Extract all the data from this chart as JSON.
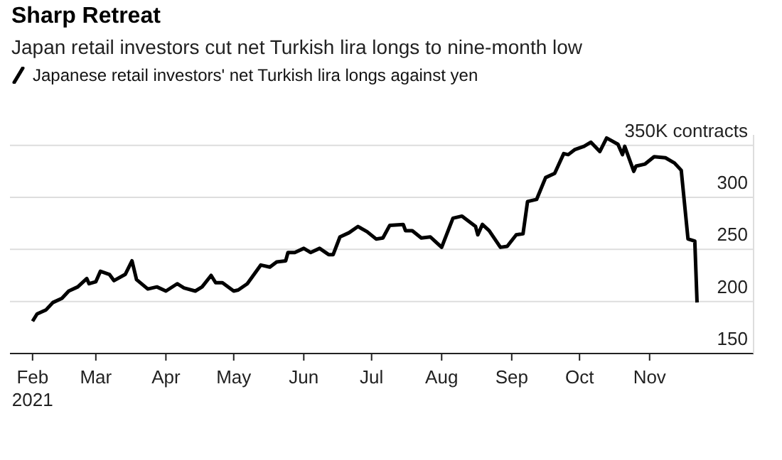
{
  "chart_data": {
    "type": "line",
    "title": "Sharp Retreat",
    "subtitle": "Japan retail investors cut net Turkish lira longs to nine-month low",
    "legend": "top left",
    "grid": "y",
    "line_style": "solid",
    "marker": "none",
    "x": [
      "2021-02-01",
      "2021-02-03",
      "2021-02-07",
      "2021-02-10",
      "2021-02-14",
      "2021-02-17",
      "2021-02-21",
      "2021-02-25",
      "2021-02-26",
      "2021-03-01",
      "2021-03-03",
      "2021-03-07",
      "2021-03-09",
      "2021-03-14",
      "2021-03-17",
      "2021-03-19",
      "2021-03-24",
      "2021-03-28",
      "2021-04-01",
      "2021-04-06",
      "2021-04-09",
      "2021-04-14",
      "2021-04-17",
      "2021-04-21",
      "2021-04-23",
      "2021-04-26",
      "2021-05-01",
      "2021-05-03",
      "2021-05-07",
      "2021-05-13",
      "2021-05-17",
      "2021-05-20",
      "2021-05-24",
      "2021-05-25",
      "2021-05-28",
      "2021-06-01",
      "2021-06-04",
      "2021-06-08",
      "2021-06-12",
      "2021-06-14",
      "2021-06-17",
      "2021-06-21",
      "2021-06-25",
      "2021-06-29",
      "2021-07-03",
      "2021-07-06",
      "2021-07-09",
      "2021-07-15",
      "2021-07-16",
      "2021-07-19",
      "2021-07-23",
      "2021-07-27",
      "2021-07-29",
      "2021-08-01",
      "2021-08-06",
      "2021-08-10",
      "2021-08-16",
      "2021-08-17",
      "2021-08-19",
      "2021-08-22",
      "2021-08-27",
      "2021-08-30",
      "2021-09-03",
      "2021-09-06",
      "2021-09-08",
      "2021-09-12",
      "2021-09-16",
      "2021-09-20",
      "2021-09-24",
      "2021-09-26",
      "2021-09-29",
      "2021-10-03",
      "2021-10-06",
      "2021-10-10",
      "2021-10-13",
      "2021-10-18",
      "2021-10-20",
      "2021-10-21",
      "2021-10-25",
      "2021-10-26",
      "2021-10-30",
      "2021-11-03",
      "2021-11-08",
      "2021-11-12",
      "2021-11-15",
      "2021-11-18",
      "2021-11-21",
      "2021-11-22"
    ],
    "series": [
      {
        "name": "Japanese retail investors' net Turkish lira longs against yen",
        "color": "#000000",
        "values": [
          181,
          188,
          192,
          199,
          203,
          210,
          214,
          222,
          217,
          219,
          229,
          226,
          220,
          226,
          239,
          221,
          212,
          214,
          210,
          217,
          213,
          210,
          214,
          225,
          218,
          218,
          210,
          211,
          217,
          235,
          233,
          238,
          239,
          247,
          247,
          251,
          247,
          251,
          245,
          245,
          262,
          266,
          272,
          267,
          260,
          261,
          273,
          274,
          268,
          268,
          261,
          262,
          258,
          252,
          280,
          282,
          272,
          264,
          274,
          268,
          252,
          253,
          264,
          265,
          296,
          298,
          319,
          323,
          342,
          341,
          346,
          349,
          353,
          344,
          357,
          351,
          341,
          349,
          325,
          330,
          332,
          339,
          338,
          333,
          326,
          260,
          258,
          199
        ]
      }
    ],
    "xlim": [
      "2021-01-22",
      "2021-12-17"
    ],
    "xticks": [
      {
        "value": "2021-02-01",
        "label": "Feb\n2021"
      },
      {
        "value": "2021-03-01",
        "label": "Mar"
      },
      {
        "value": "2021-04-01",
        "label": "Apr"
      },
      {
        "value": "2021-05-01",
        "label": "May"
      },
      {
        "value": "2021-06-01",
        "label": "Jun"
      },
      {
        "value": "2021-07-01",
        "label": "Jul"
      },
      {
        "value": "2021-08-01",
        "label": "Aug"
      },
      {
        "value": "2021-09-01",
        "label": "Sep"
      },
      {
        "value": "2021-10-01",
        "label": "Oct"
      },
      {
        "value": "2021-11-01",
        "label": "Nov"
      }
    ],
    "ylim": [
      150,
      360
    ],
    "yticks": [
      150,
      200,
      250,
      300,
      {
        "value": 350,
        "label": "350K contracts"
      }
    ]
  }
}
